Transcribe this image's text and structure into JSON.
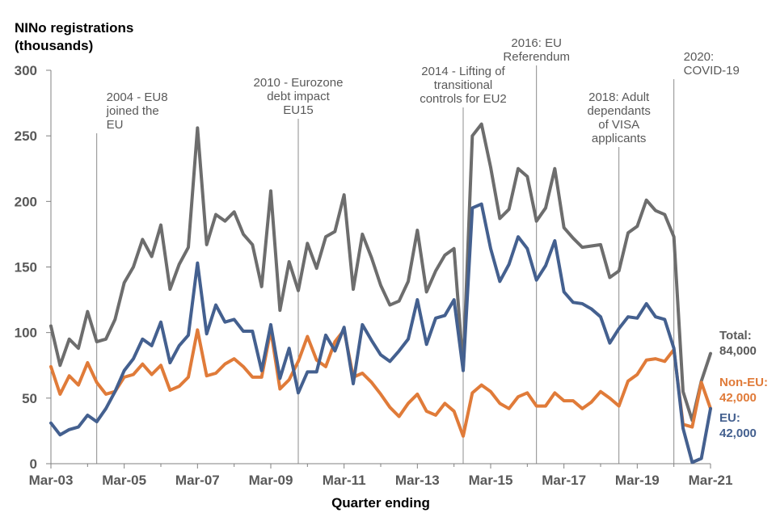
{
  "chart_data": {
    "type": "line",
    "ylabel": [
      "NINo registrations",
      "(thousands)"
    ],
    "xlabel": "Quarter ending",
    "ylim": [
      0,
      300
    ],
    "yticks": [
      0,
      50,
      100,
      150,
      200,
      250,
      300
    ],
    "xtick_labels": [
      "Mar-03",
      "Mar-05",
      "Mar-07",
      "Mar-09",
      "Mar-11",
      "Mar-13",
      "Mar-15",
      "Mar-17",
      "Mar-19",
      "Mar-21"
    ],
    "x_first": "Mar-03",
    "x_last": "Mar-21",
    "series": [
      {
        "key": "total",
        "color": "#6d6d6d",
        "values": [
          105,
          75,
          95,
          88,
          116,
          93,
          95,
          110,
          138,
          150,
          171,
          158,
          182,
          133,
          152,
          165,
          256,
          167,
          190,
          185,
          192,
          175,
          167,
          135,
          208,
          117,
          154,
          132,
          168,
          149,
          173,
          177,
          205,
          133,
          175,
          157,
          136,
          121,
          124,
          139,
          178,
          131,
          147,
          159,
          164,
          73,
          250,
          259,
          226,
          187,
          194,
          225,
          219,
          185,
          195,
          225,
          180,
          172,
          165,
          166,
          167,
          142,
          147,
          176,
          181,
          201,
          193,
          190,
          173,
          55,
          33,
          63,
          84
        ]
      },
      {
        "key": "eu",
        "color": "#44608f",
        "values": [
          31,
          22,
          26,
          28,
          37,
          32,
          42,
          55,
          71,
          80,
          95,
          90,
          108,
          77,
          90,
          98,
          153,
          99,
          121,
          108,
          110,
          101,
          101,
          71,
          106,
          65,
          88,
          54,
          70,
          70,
          98,
          86,
          104,
          61,
          106,
          94,
          83,
          78,
          86,
          95,
          125,
          91,
          111,
          113,
          125,
          71,
          195,
          198,
          164,
          139,
          152,
          173,
          164,
          140,
          151,
          170,
          131,
          123,
          122,
          118,
          112,
          92,
          103,
          112,
          111,
          122,
          112,
          110,
          88,
          27,
          1,
          4,
          42
        ]
      },
      {
        "key": "noneu",
        "color": "#e07b39",
        "values": [
          74,
          53,
          67,
          60,
          77,
          62,
          53,
          55,
          66,
          68,
          76,
          68,
          75,
          56,
          59,
          66,
          102,
          67,
          69,
          76,
          80,
          74,
          66,
          66,
          102,
          57,
          64,
          78,
          97,
          79,
          74,
          93,
          102,
          66,
          69,
          62,
          53,
          43,
          36,
          46,
          53,
          40,
          37,
          46,
          40,
          21,
          54,
          60,
          55,
          46,
          42,
          51,
          54,
          44,
          44,
          54,
          48,
          48,
          42,
          47,
          55,
          50,
          44,
          63,
          68,
          79,
          80,
          78,
          87,
          30,
          28,
          62,
          42
        ]
      }
    ],
    "end_labels": [
      {
        "key": "total",
        "lines": [
          "Total:",
          "84,000"
        ],
        "color": "#595959"
      },
      {
        "key": "noneu",
        "lines": [
          "Non-EU:",
          "42,000"
        ],
        "color": "#e07b39"
      },
      {
        "key": "eu",
        "lines": [
          "EU:",
          "42,000"
        ],
        "color": "#44608f"
      }
    ],
    "annotations": [
      {
        "index": 5,
        "lines": [
          "2004 - EU8",
          "joined the",
          "EU"
        ],
        "align": "start"
      },
      {
        "index": 27,
        "lines": [
          "2010 - Eurozone",
          "debt impact",
          "EU15"
        ],
        "align": "middle"
      },
      {
        "index": 45,
        "lines": [
          "2014 - Lifting of",
          "transitional",
          "controls for EU2"
        ],
        "align": "middle"
      },
      {
        "index": 53,
        "lines": [
          "2016: EU",
          "Referendum"
        ],
        "align": "middle"
      },
      {
        "index": 62,
        "lines": [
          "2018: Adult",
          "dependants",
          "of VISA",
          "applicants"
        ],
        "align": "middle"
      },
      {
        "index": 68,
        "lines": [
          "2020:",
          "COVID-19"
        ],
        "align": "start"
      }
    ],
    "grid": false
  }
}
